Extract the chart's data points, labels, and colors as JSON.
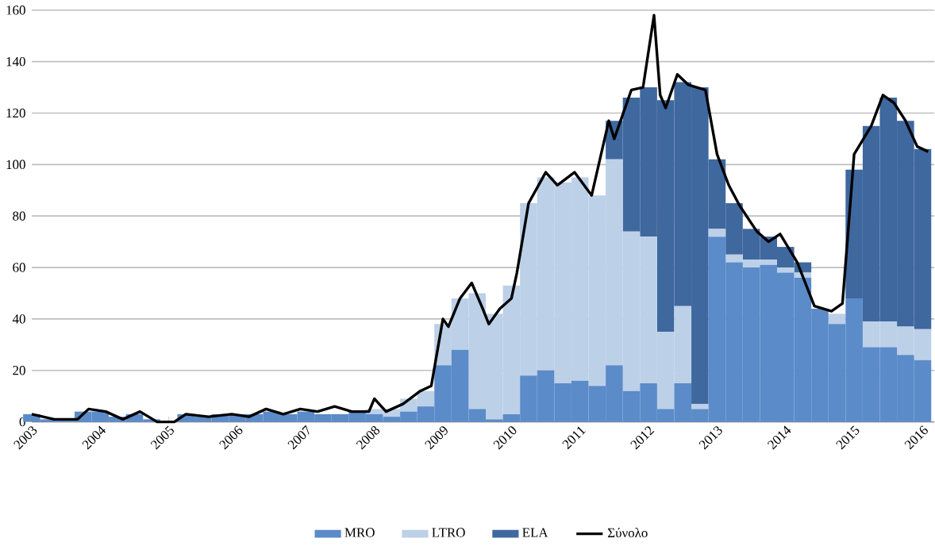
{
  "chart_data": {
    "type": "bar",
    "stacked": true,
    "grid": "y",
    "legend": "bottom",
    "x": [
      "2003-01",
      "2003-04",
      "2003-07",
      "2003-10",
      "2004-01",
      "2004-04",
      "2004-07",
      "2004-10",
      "2005-01",
      "2005-04",
      "2005-07",
      "2005-10",
      "2006-01",
      "2006-04",
      "2006-07",
      "2006-10",
      "2007-01",
      "2007-04",
      "2007-07",
      "2007-10",
      "2008-01",
      "2008-04",
      "2008-07",
      "2008-10",
      "2009-01",
      "2009-04",
      "2009-07",
      "2009-10",
      "2010-01",
      "2010-04",
      "2010-07",
      "2010-10",
      "2011-01",
      "2011-04",
      "2011-07",
      "2011-10",
      "2012-01",
      "2012-04",
      "2012-07",
      "2012-10",
      "2013-01",
      "2013-04",
      "2013-07",
      "2013-10",
      "2014-01",
      "2014-04",
      "2014-07",
      "2014-10",
      "2015-01",
      "2015-04",
      "2015-07",
      "2015-10",
      "2016-01"
    ],
    "xlim": [
      "2003-01",
      "2016-03"
    ],
    "xticks": [
      "2003",
      "2004",
      "2005",
      "2006",
      "2007",
      "2008",
      "2009",
      "2010",
      "2011",
      "2012",
      "2013",
      "2014",
      "2015",
      "2016"
    ],
    "ylim": [
      0,
      160
    ],
    "yticks": [
      0,
      20,
      40,
      60,
      80,
      100,
      120,
      140,
      160
    ],
    "series": [
      {
        "name": "MRO",
        "color": "#5b8bc9",
        "values": [
          3,
          1,
          1,
          4,
          4,
          2,
          3,
          1,
          0,
          3,
          2,
          3,
          3,
          3,
          4,
          3,
          4,
          3,
          3,
          4,
          3,
          2,
          4,
          6,
          22,
          28,
          5,
          1,
          3,
          18,
          20,
          15,
          16,
          14,
          22,
          12,
          15,
          5,
          15,
          5,
          72,
          62,
          60,
          61,
          58,
          56,
          44,
          38,
          48,
          29,
          29,
          26,
          24
        ]
      },
      {
        "name": "LTRO",
        "color": "#bcd0e8",
        "values": [
          0,
          0,
          0,
          0,
          0,
          0,
          0,
          0,
          0,
          0,
          0,
          0,
          0,
          0,
          0,
          0,
          0,
          0,
          0,
          0,
          2,
          3,
          5,
          6,
          16,
          20,
          45,
          41,
          50,
          67,
          75,
          78,
          79,
          74,
          80,
          62,
          57,
          30,
          30,
          2,
          3,
          3,
          3,
          2,
          2,
          2,
          0,
          4,
          0,
          10,
          10,
          11,
          12
        ]
      },
      {
        "name": "ELA",
        "color": "#3f689f",
        "values": [
          0,
          0,
          0,
          0,
          0,
          0,
          0,
          0,
          0,
          0,
          0,
          0,
          0,
          0,
          0,
          0,
          0,
          0,
          0,
          0,
          0,
          0,
          0,
          0,
          0,
          0,
          0,
          0,
          0,
          0,
          0,
          0,
          0,
          0,
          15,
          52,
          58,
          90,
          87,
          123,
          27,
          20,
          12,
          9,
          8,
          4,
          0,
          0,
          50,
          76,
          87,
          80,
          70
        ]
      },
      {
        "name": "Σύνολο",
        "type": "line",
        "color": "#000000",
        "x": [
          "2003-01",
          "2003-05",
          "2003-09",
          "2003-11",
          "2004-02",
          "2004-05",
          "2004-08",
          "2004-11",
          "2005-02",
          "2005-04",
          "2005-08",
          "2005-12",
          "2006-03",
          "2006-06",
          "2006-09",
          "2006-12",
          "2007-03",
          "2007-06",
          "2007-09",
          "2007-12",
          "2008-01",
          "2008-03",
          "2008-06",
          "2008-09",
          "2008-11",
          "2009-01",
          "2009-02",
          "2009-04",
          "2009-06",
          "2009-08",
          "2009-09",
          "2009-11",
          "2010-01",
          "2010-02",
          "2010-04",
          "2010-07",
          "2010-09",
          "2010-12",
          "2011-03",
          "2011-06",
          "2011-07",
          "2011-10",
          "2011-12",
          "2012-02",
          "2012-03",
          "2012-04",
          "2012-06",
          "2012-08",
          "2012-11",
          "2013-01",
          "2013-03",
          "2013-05",
          "2013-08",
          "2013-10",
          "2013-12",
          "2014-03",
          "2014-06",
          "2014-09",
          "2014-11",
          "2015-01",
          "2015-04",
          "2015-06",
          "2015-08",
          "2015-10",
          "2015-12",
          "2016-02"
        ],
        "values": [
          3,
          1,
          1,
          5,
          4,
          1,
          4,
          0,
          0,
          3,
          2,
          3,
          2,
          5,
          3,
          5,
          4,
          6,
          4,
          4,
          9,
          4,
          7,
          12,
          14,
          40,
          37,
          48,
          54,
          44,
          38,
          44,
          48,
          58,
          85,
          97,
          92,
          97,
          88,
          117,
          110,
          129,
          130,
          158,
          127,
          122,
          135,
          131,
          129,
          104,
          92,
          84,
          74,
          70,
          73,
          62,
          45,
          43,
          46,
          104,
          115,
          127,
          124,
          117,
          107,
          105
        ]
      }
    ]
  }
}
